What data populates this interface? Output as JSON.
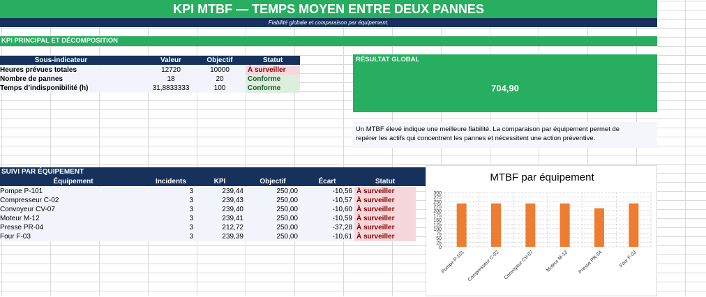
{
  "header": {
    "title": "KPI MTBF — TEMPS MOYEN ENTRE DEUX PANNES",
    "subtitle": "Fiabilité globale et comparaison par équipement."
  },
  "section_main": {
    "title": "KPI PRINCIPAL ET DÉCOMPOSITION"
  },
  "subkpi": {
    "headers": [
      "Sous-indicateur",
      "Valeur",
      "Objectif",
      "Statut"
    ],
    "rows": [
      {
        "label": "Heures prévues totales",
        "value": "12720",
        "target": "10000",
        "status": "À surveiller",
        "status_kind": "warn"
      },
      {
        "label": "Nombre de pannes",
        "value": "18",
        "target": "20",
        "status": "Conforme",
        "status_kind": "ok"
      },
      {
        "label": "Temps d’indisponibilité (h)",
        "value": "31,8833333",
        "target": "100",
        "status": "Conforme",
        "status_kind": "ok"
      }
    ]
  },
  "result": {
    "label": "RÉSULTAT GLOBAL",
    "value": "704,90"
  },
  "note": {
    "line1": "Un MTBF élevé indique une meilleure fiabilité. La comparaison par équipement permet de",
    "line2": "repérer les actifs qui concentrent les pannes et nécessitent une action préventive."
  },
  "equip": {
    "section_title": "SUIVI PAR ÉQUIPEMENT",
    "headers": [
      "Équipement",
      "Incidents",
      "KPI",
      "Objectif",
      "Écart",
      "Statut"
    ],
    "rows": [
      {
        "name": "Pompe P-101",
        "incidents": "3",
        "kpi": "239,44",
        "target": "250,00",
        "gap": "-10,56",
        "status": "À surveiller"
      },
      {
        "name": "Compresseur C-02",
        "incidents": "3",
        "kpi": "239,43",
        "target": "250,00",
        "gap": "-10,57",
        "status": "À surveiller"
      },
      {
        "name": "Convoyeur CV-07",
        "incidents": "3",
        "kpi": "239,40",
        "target": "250,00",
        "gap": "-10,60",
        "status": "À surveiller"
      },
      {
        "name": "Moteur M-12",
        "incidents": "3",
        "kpi": "239,41",
        "target": "250,00",
        "gap": "-10,59",
        "status": "À surveiller"
      },
      {
        "name": "Presse PR-04",
        "incidents": "3",
        "kpi": "212,72",
        "target": "250,00",
        "gap": "-37,28",
        "status": "À surveiller"
      },
      {
        "name": "Four F-03",
        "incidents": "3",
        "kpi": "239,39",
        "target": "250,00",
        "gap": "-10,61",
        "status": "À surveiller"
      }
    ]
  },
  "colors": {
    "green": "#27ae60",
    "navy": "#16325c",
    "bar": "#ed7d31",
    "warn_bg": "#f6d8dc",
    "ok_bg": "#dbefdc"
  },
  "chart_data": {
    "type": "bar",
    "title": "MTBF par équipement",
    "categories": [
      "Pompe P-101",
      "Compresseur C-02",
      "Convoyeur CV-07",
      "Moteur M-12",
      "Presse PR-04",
      "Four F-03"
    ],
    "values": [
      239.44,
      239.43,
      239.4,
      239.41,
      212.72,
      239.39
    ],
    "ylim": [
      0,
      300
    ],
    "yticks": [
      0,
      25,
      50,
      75,
      100,
      125,
      150,
      175,
      200,
      225,
      250,
      275,
      300
    ],
    "grid": true,
    "legend": "none"
  }
}
